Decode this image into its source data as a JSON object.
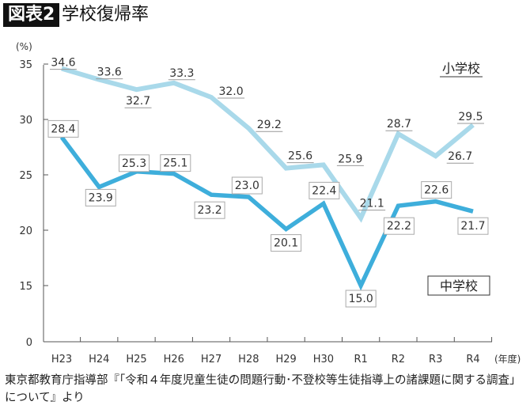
{
  "header": {
    "figure_label": "図表2",
    "title": "学校復帰率"
  },
  "chart_data": {
    "type": "line",
    "title": "学校復帰率",
    "ylabel": "(%)",
    "xlabel": "(年度)",
    "categories": [
      "H23",
      "H24",
      "H25",
      "H26",
      "H27",
      "H28",
      "H29",
      "H30",
      "R1",
      "R2",
      "R3",
      "R4"
    ],
    "yticks": [
      0,
      15,
      20,
      25,
      30,
      35
    ],
    "ylim": [
      0,
      35
    ],
    "axis_break": "0–15",
    "grid": false,
    "series": [
      {
        "name": "小学校",
        "color": "#a9d9ea",
        "values": [
          34.6,
          33.6,
          32.7,
          33.3,
          32.0,
          29.2,
          25.6,
          25.9,
          21.1,
          28.7,
          26.7,
          29.5
        ]
      },
      {
        "name": "中学校",
        "color": "#3eaedb",
        "values": [
          28.4,
          23.9,
          25.3,
          25.1,
          23.2,
          23.0,
          20.1,
          22.4,
          15.0,
          22.2,
          22.6,
          21.7
        ]
      }
    ]
  },
  "source": "東京都教育庁指導部『「令和４年度児童生徒の問題行動･不登校等生徒指導上の諸課題に関する調査」について』より"
}
